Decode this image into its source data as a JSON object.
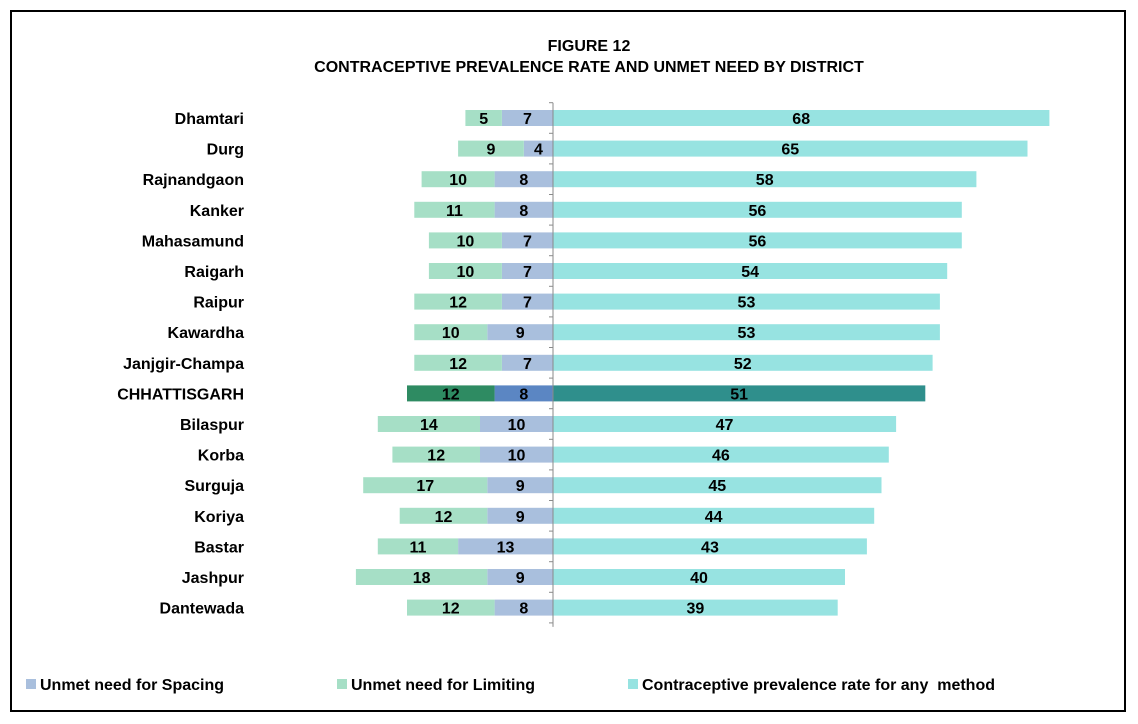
{
  "chart_data": {
    "type": "bar",
    "orientation": "horizontal",
    "title": "FIGURE 12",
    "subtitle": "CONTRACEPTIVE PREVALENCE RATE AND UNMET NEED BY DISTRICT",
    "categories": [
      "Dhamtari",
      "Durg",
      "Rajnandgaon",
      "Kanker",
      "Mahasamund",
      "Raigarh",
      "Raipur",
      "Kawardha",
      "Janjgir-Champa",
      "CHHATTISGARH",
      "Bilaspur",
      "Korba",
      "Surguja",
      "Koriya",
      "Bastar",
      "Jashpur",
      "Dantewada"
    ],
    "highlight_category": "CHHATTISGARH",
    "series": [
      {
        "name": "Unmet need for Spacing",
        "color": "#a9bfdd",
        "highlight_color": "#5b86c3",
        "direction": "left",
        "values": [
          7,
          4,
          8,
          8,
          7,
          7,
          7,
          9,
          7,
          8,
          10,
          10,
          9,
          9,
          13,
          9,
          8
        ]
      },
      {
        "name": "Unmet need for Limiting",
        "color": "#a6dfc6",
        "highlight_color": "#2e8b62",
        "direction": "left",
        "values": [
          5,
          9,
          10,
          11,
          10,
          10,
          12,
          10,
          12,
          12,
          14,
          12,
          17,
          12,
          11,
          18,
          12
        ]
      },
      {
        "name": "Contraceptive prevalence rate for any  method",
        "color": "#97e3e1",
        "highlight_color": "#2f8f8c",
        "direction": "right",
        "values": [
          68,
          65,
          58,
          56,
          56,
          54,
          53,
          53,
          52,
          51,
          47,
          46,
          45,
          44,
          43,
          40,
          39
        ]
      }
    ],
    "legend_position": "bottom",
    "grid": false
  }
}
